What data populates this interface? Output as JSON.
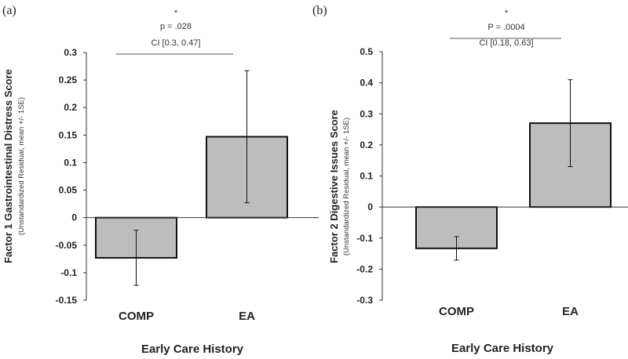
{
  "chart_data": [
    {
      "panel": "(a)",
      "type": "bar",
      "categories": [
        "COMP",
        "EA"
      ],
      "values": [
        -0.073,
        0.147
      ],
      "errors": [
        0.05,
        0.12
      ],
      "ylim": [
        -0.15,
        0.3
      ],
      "ticks": [
        "0.3",
        "0.25",
        "0.2",
        "0.15",
        "0.1",
        "0.05",
        "0",
        "-0.05",
        "-0.1",
        "-0.15"
      ],
      "ylabel": "Factor 1 Gastrointestinal Distress Score",
      "ylabel_sub": "(Unstandardized Residual, mean +/- 1SE)",
      "xlabel": "Early Care History",
      "sig_star": "*",
      "p_text": "p = .028",
      "ci_text": "CI [0.3, 0.47]",
      "bar_color": "#bdbdbd"
    },
    {
      "panel": "(b)",
      "type": "bar",
      "categories": [
        "COMP",
        "EA"
      ],
      "values": [
        -0.133,
        0.27
      ],
      "errors": [
        0.038,
        0.14
      ],
      "ylim": [
        -0.3,
        0.5
      ],
      "ticks": [
        "0.5",
        "0.4",
        "0.3",
        "0.2",
        "0.1",
        "0",
        "-0.1",
        "-0.2",
        "-0.3"
      ],
      "ylabel": "Factor 2 Digestive Issues Score",
      "ylabel_sub": "(Unstandardized Residual, mean +/- 1SE)",
      "xlabel": "Early Care History",
      "sig_star": "*",
      "p_text": "P = .0004",
      "ci_text": "CI [0.18, 0.63]",
      "bar_color": "#bdbdbd"
    }
  ]
}
